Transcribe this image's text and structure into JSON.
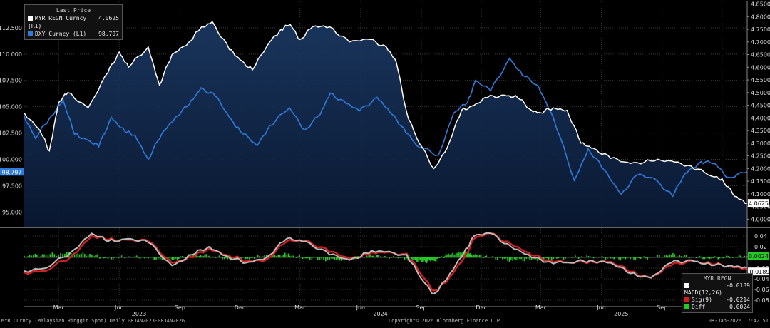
{
  "legend": {
    "header": "Last Price",
    "series": [
      {
        "label": "MYR REGN Curncy (R1)",
        "value": "4.0625",
        "color": "#ffffff"
      },
      {
        "label": "DXY Curncy (L1)",
        "value": "98.797",
        "color": "#2f7bdc"
      }
    ]
  },
  "macd_legend": {
    "header": "MYR REGN",
    "rows": [
      {
        "label": "MACD(12,26)",
        "value": "-0.0189",
        "color": "#ffffff"
      },
      {
        "label": "Sig(9)",
        "value": "-0.0214",
        "color": "#d02020"
      },
      {
        "label": "Diff",
        "value": "0.0024",
        "color": "#22cc22"
      }
    ]
  },
  "badges": {
    "left_value": "98.797",
    "right_value": "4.0625",
    "macd_diff": "0.0024",
    "macd_line": "-0.0189"
  },
  "footer": {
    "left": "MYR Curncy (Malaysian Ringgit Spot) Daily 08JAN2023-08JAN2026",
    "center": "Copyright© 2026 Bloomberg Finance L.P.",
    "right": "08-Jan-2026 17:42:51"
  },
  "chart_data": [
    {
      "type": "line",
      "x_axis": {
        "month_labels": [
          "Mar",
          "Jun",
          "Sep",
          "Dec",
          "Mar",
          "Jun",
          "Sep",
          "Dec",
          "Mar",
          "Jun",
          "Sep",
          "Dec"
        ],
        "year_labels": [
          "2023",
          "2024",
          "2025"
        ],
        "range": [
          "2023-01-08",
          "2026-01-08"
        ]
      },
      "y_left": {
        "ticks": [
          "95.000",
          "97.500",
          "100.000",
          "102.500",
          "105.000",
          "107.500",
          "110.000",
          "112.500"
        ],
        "range": [
          93.6,
          115.0
        ]
      },
      "y_right": {
        "ticks": [
          "4.0000",
          "4.0500",
          "4.1000",
          "4.1500",
          "4.2000",
          "4.2500",
          "4.3000",
          "4.3500",
          "4.4000",
          "4.4500",
          "4.5000",
          "4.5500",
          "4.6000",
          "4.6500",
          "4.7000",
          "4.7500",
          "4.8000",
          "4.8500"
        ],
        "range": [
          3.97,
          4.86
        ]
      },
      "series": [
        {
          "name": "MYR REGN Curncy (R1)",
          "axis": "right",
          "x": [
            "2023-01-08",
            "2023-02-01",
            "2023-02-15",
            "2023-03-01",
            "2023-03-15",
            "2023-04-15",
            "2023-05-15",
            "2023-06-01",
            "2023-06-15",
            "2023-07-15",
            "2023-08-01",
            "2023-08-20",
            "2023-09-15",
            "2023-10-01",
            "2023-10-20",
            "2023-11-15",
            "2023-12-01",
            "2023-12-20",
            "2024-01-15",
            "2024-02-01",
            "2024-02-15",
            "2024-03-01",
            "2024-03-20",
            "2024-04-15",
            "2024-05-15",
            "2024-06-15",
            "2024-07-10",
            "2024-07-25",
            "2024-08-10",
            "2024-08-25",
            "2024-09-20",
            "2024-10-10",
            "2024-11-01",
            "2024-11-20",
            "2024-12-10",
            "2025-01-05",
            "2025-01-25",
            "2025-02-15",
            "2025-03-01",
            "2025-03-20",
            "2025-04-10",
            "2025-05-01",
            "2025-05-20",
            "2025-06-15",
            "2025-07-15",
            "2025-08-15",
            "2025-09-15",
            "2025-10-15",
            "2025-11-15",
            "2025-12-01",
            "2025-12-20",
            "2026-01-08"
          ],
          "y": [
            4.42,
            4.35,
            4.27,
            4.46,
            4.5,
            4.44,
            4.58,
            4.66,
            4.6,
            4.68,
            4.53,
            4.65,
            4.7,
            4.75,
            4.78,
            4.67,
            4.63,
            4.59,
            4.7,
            4.75,
            4.77,
            4.71,
            4.76,
            4.76,
            4.7,
            4.71,
            4.68,
            4.62,
            4.42,
            4.32,
            4.2,
            4.28,
            4.43,
            4.45,
            4.48,
            4.49,
            4.48,
            4.43,
            4.42,
            4.44,
            4.43,
            4.3,
            4.28,
            4.24,
            4.22,
            4.23,
            4.23,
            4.21,
            4.17,
            4.16,
            4.09,
            4.0625
          ]
        },
        {
          "name": "DXY Curncy (L1)",
          "axis": "left",
          "x": [
            "2023-01-08",
            "2023-01-25",
            "2023-02-15",
            "2023-03-08",
            "2023-03-25",
            "2023-04-15",
            "2023-05-01",
            "2023-05-20",
            "2023-06-10",
            "2023-06-25",
            "2023-07-15",
            "2023-08-05",
            "2023-08-25",
            "2023-09-15",
            "2023-10-03",
            "2023-10-25",
            "2023-11-15",
            "2023-12-01",
            "2023-12-27",
            "2024-01-15",
            "2024-02-14",
            "2024-03-08",
            "2024-04-01",
            "2024-04-16",
            "2024-05-10",
            "2024-05-30",
            "2024-06-26",
            "2024-07-15",
            "2024-08-05",
            "2024-08-25",
            "2024-09-27",
            "2024-10-20",
            "2024-11-10",
            "2024-11-22",
            "2024-12-15",
            "2025-01-13",
            "2025-02-01",
            "2025-02-25",
            "2025-03-20",
            "2025-04-21",
            "2025-05-12",
            "2025-06-05",
            "2025-07-01",
            "2025-07-25",
            "2025-08-20",
            "2025-09-17",
            "2025-10-05",
            "2025-10-30",
            "2025-11-20",
            "2025-12-10",
            "2026-01-08"
          ],
          "y": [
            104.1,
            102.0,
            103.9,
            105.6,
            102.4,
            101.8,
            101.2,
            104.0,
            102.6,
            102.3,
            100.0,
            102.5,
            104.0,
            105.2,
            106.8,
            106.0,
            104.0,
            102.7,
            101.3,
            103.2,
            104.9,
            102.8,
            104.3,
            106.3,
            105.3,
            104.6,
            105.9,
            104.5,
            103.0,
            101.3,
            100.4,
            104.4,
            105.4,
            107.5,
            106.5,
            109.6,
            108.0,
            107.0,
            104.0,
            98.0,
            101.0,
            99.0,
            96.7,
            98.5,
            98.2,
            96.5,
            98.6,
            99.8,
            99.6,
            98.3,
            98.797
          ]
        }
      ]
    },
    {
      "type": "bar",
      "title": "MYR REGN",
      "y_axis": {
        "ticks": [
          "0.04",
          "0.02",
          "0.00",
          "-0.02",
          "-0.04",
          "-0.06",
          "-0.08"
        ],
        "range": [
          -0.092,
          0.052
        ]
      },
      "series": [
        {
          "name": "MACD(12,26)",
          "x": [
            "2023-01-08",
            "2023-02-10",
            "2023-03-20",
            "2023-04-20",
            "2023-05-15",
            "2023-06-15",
            "2023-07-15",
            "2023-08-20",
            "2023-09-20",
            "2023-10-15",
            "2023-11-15",
            "2023-12-10",
            "2024-01-10",
            "2024-02-10",
            "2024-03-10",
            "2024-04-15",
            "2024-05-15",
            "2024-06-10",
            "2024-07-01",
            "2024-08-10",
            "2024-09-01",
            "2024-09-20",
            "2024-10-10",
            "2024-11-05",
            "2024-11-20",
            "2024-12-15",
            "2025-01-15",
            "2025-02-15",
            "2025-03-15",
            "2025-04-15",
            "2025-05-15",
            "2025-06-15",
            "2025-07-15",
            "2025-08-15",
            "2025-09-15",
            "2025-10-15",
            "2025-11-15",
            "2025-12-15",
            "2026-01-08"
          ],
          "y": [
            -0.025,
            -0.02,
            0.01,
            0.045,
            0.03,
            0.035,
            0.028,
            -0.015,
            0.005,
            0.02,
            0.0,
            -0.01,
            0.0,
            0.035,
            0.03,
            0.005,
            -0.005,
            0.008,
            0.012,
            0.005,
            -0.04,
            -0.068,
            -0.04,
            0.01,
            0.04,
            0.045,
            0.02,
            0.0,
            -0.008,
            -0.01,
            -0.005,
            -0.01,
            -0.03,
            -0.038,
            -0.01,
            -0.005,
            -0.015,
            -0.015,
            -0.0189
          ]
        },
        {
          "name": "Sig(9)",
          "x": [
            "2023-01-08",
            "2023-02-10",
            "2023-03-20",
            "2023-04-20",
            "2023-05-15",
            "2023-06-15",
            "2023-07-15",
            "2023-08-20",
            "2023-09-20",
            "2023-10-15",
            "2023-11-15",
            "2023-12-10",
            "2024-01-10",
            "2024-02-10",
            "2024-03-10",
            "2024-04-15",
            "2024-05-15",
            "2024-06-10",
            "2024-07-01",
            "2024-08-10",
            "2024-09-01",
            "2024-09-20",
            "2024-10-10",
            "2024-11-05",
            "2024-11-20",
            "2024-12-15",
            "2025-01-15",
            "2025-02-15",
            "2025-03-15",
            "2025-04-15",
            "2025-05-15",
            "2025-06-15",
            "2025-07-15",
            "2025-08-15",
            "2025-09-15",
            "2025-10-15",
            "2025-11-15",
            "2025-12-15",
            "2026-01-08"
          ],
          "y": [
            -0.028,
            -0.025,
            0.002,
            0.04,
            0.033,
            0.033,
            0.03,
            -0.01,
            0.0,
            0.017,
            0.003,
            -0.007,
            -0.004,
            0.03,
            0.032,
            0.01,
            -0.002,
            0.005,
            0.01,
            0.007,
            -0.032,
            -0.062,
            -0.045,
            0.0,
            0.035,
            0.045,
            0.025,
            0.004,
            -0.005,
            -0.01,
            -0.007,
            -0.008,
            -0.027,
            -0.038,
            -0.015,
            -0.006,
            -0.013,
            -0.016,
            -0.0214
          ]
        },
        {
          "name": "Diff",
          "x": [
            "2023-01-08",
            "2023-02-10",
            "2023-03-20",
            "2023-04-20",
            "2023-05-15",
            "2023-06-15",
            "2023-07-15",
            "2023-08-20",
            "2023-09-20",
            "2023-10-15",
            "2023-11-15",
            "2023-12-10",
            "2024-01-10",
            "2024-02-10",
            "2024-03-10",
            "2024-04-15",
            "2024-05-15",
            "2024-06-10",
            "2024-07-01",
            "2024-08-10",
            "2024-09-01",
            "2024-09-20",
            "2024-10-10",
            "2024-11-05",
            "2024-11-20",
            "2024-12-15",
            "2025-01-15",
            "2025-02-15",
            "2025-03-15",
            "2025-04-15",
            "2025-05-15",
            "2025-06-15",
            "2025-07-15",
            "2025-08-15",
            "2025-09-15",
            "2025-10-15",
            "2025-11-15",
            "2025-12-15",
            "2026-01-08"
          ],
          "y": [
            0.003,
            0.005,
            0.008,
            0.005,
            -0.003,
            0.002,
            -0.002,
            -0.005,
            0.005,
            0.003,
            -0.003,
            -0.003,
            0.004,
            0.005,
            -0.002,
            -0.005,
            -0.003,
            0.003,
            0.002,
            -0.002,
            -0.008,
            -0.006,
            0.005,
            0.01,
            0.005,
            0.0,
            -0.005,
            -0.004,
            -0.003,
            0.0,
            0.002,
            -0.002,
            -0.003,
            0.0,
            0.005,
            0.001,
            -0.002,
            0.001,
            0.0024
          ]
        }
      ]
    }
  ]
}
